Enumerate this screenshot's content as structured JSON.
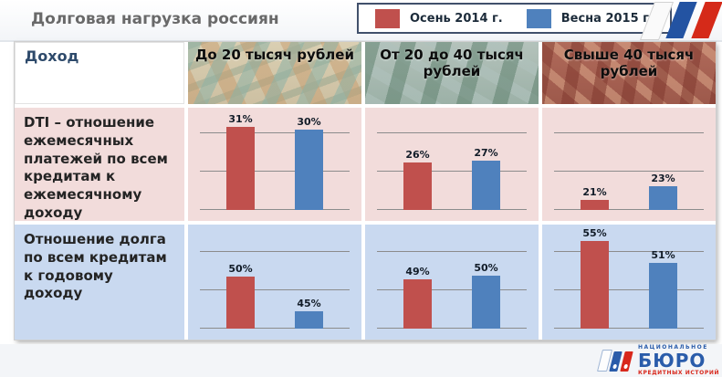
{
  "header": {
    "title": "Долговая нагрузка россиян",
    "legend": [
      {
        "label": "Осень 2014 г.",
        "color": "#c0504d"
      },
      {
        "label": "Весна 2015 г.",
        "color": "#4f81bd"
      }
    ]
  },
  "table": {
    "corner_label": "Доход",
    "columns": [
      "До 20 тысяч рублей",
      "От 20 до 40 тысяч рублей",
      "Свыше 40 тысяч рублей"
    ],
    "rows": [
      {
        "label": "DTI – отношение ежемесячных платежей по всем кредитам к ежемесячному доходу"
      },
      {
        "label": "Отношение долга по всем кредитам к годовому доходу"
      }
    ]
  },
  "chart_data": {
    "type": "bar",
    "title": "Долговая нагрузка россиян",
    "unit": "%",
    "grid": true,
    "series_names": [
      "Осень 2014 г.",
      "Весна 2015 г."
    ],
    "series_colors": [
      "#c0504d",
      "#4f81bd"
    ],
    "income_groups": [
      "До 20 тысяч рублей",
      "От 20 до 40 тысяч рублей",
      "Свыше 40 тысяч рублей"
    ],
    "metrics": [
      "DTI – отношение ежемесячных платежей по всем кредитам к ежемесячному доходу",
      "Отношение долга по всем кредитам к годовому доходу"
    ],
    "cells": [
      {
        "metric": 0,
        "group": 0,
        "values": [
          31,
          30
        ],
        "labels": [
          "31%",
          "30%"
        ],
        "ylim": [
          0,
          39
        ]
      },
      {
        "metric": 0,
        "group": 1,
        "values": [
          26,
          27
        ],
        "labels": [
          "26%",
          "27%"
        ],
        "ylim": [
          0,
          57
        ]
      },
      {
        "metric": 0,
        "group": 2,
        "values": [
          21,
          23
        ],
        "labels": [
          "21%",
          "23%"
        ],
        "ylim": [
          19.5,
          35
        ]
      },
      {
        "metric": 1,
        "group": 0,
        "values": [
          50,
          45
        ],
        "labels": [
          "50%",
          "45%"
        ],
        "ylim": [
          42.5,
          57.5
        ]
      },
      {
        "metric": 1,
        "group": 1,
        "values": [
          49,
          50
        ],
        "labels": [
          "49%",
          "50%"
        ],
        "ylim": [
          35.5,
          64
        ]
      },
      {
        "metric": 1,
        "group": 2,
        "values": [
          55,
          51
        ],
        "labels": [
          "55%",
          "51%"
        ],
        "ylim": [
          39,
          58
        ]
      }
    ]
  },
  "footer_logo": {
    "top": "НАЦИОНАЛЬНОЕ",
    "main": "БЮРО",
    "bottom": "КРЕДИТНЫХ ИСТОРИЙ"
  }
}
